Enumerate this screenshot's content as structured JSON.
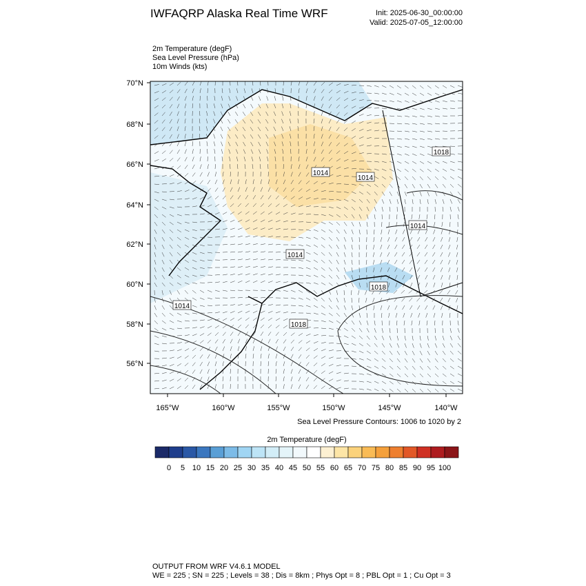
{
  "header": {
    "title": "IWFAQRP Alaska Real Time WRF",
    "init": "Init: 2025-06-30_00:00:00",
    "valid": "Valid: 2025-07-05_12:00:00"
  },
  "fields": [
    "2m Temperature   (degF)",
    "Sea Level Pressure   (hPa)",
    "10m Winds   (kts)"
  ],
  "map": {
    "lat_labels": [
      "70°N",
      "68°N",
      "66°N",
      "64°N",
      "62°N",
      "60°N",
      "58°N",
      "56°N"
    ],
    "lon_labels": [
      "165°W",
      "160°W",
      "155°W",
      "150°W",
      "145°W",
      "140°W"
    ],
    "contour_labels": [
      "1014",
      "1014",
      "1018",
      "1014",
      "1014",
      "1018",
      "1014",
      "1018"
    ],
    "contour_note": "Sea Level Pressure Contours: 1006 to 1020 by 2"
  },
  "colorbar": {
    "title": "2m Temperature  (degF)",
    "ticks": [
      0,
      5,
      10,
      15,
      20,
      25,
      30,
      35,
      40,
      45,
      50,
      55,
      60,
      65,
      70,
      75,
      80,
      85,
      90,
      95,
      100
    ],
    "colors": [
      "#1b2a68",
      "#1f3e8c",
      "#2a58a6",
      "#3b77bf",
      "#5a9fd6",
      "#7cbbe7",
      "#a0d5f3",
      "#bde4f6",
      "#d2edf7",
      "#e4f4f9",
      "#f2f9fc",
      "#ffffff",
      "#fdf0d2",
      "#fde5a6",
      "#fbd27b",
      "#f9bb55",
      "#f4a03b",
      "#ee7f2f",
      "#e25827",
      "#cf3023",
      "#ae1c1f",
      "#8b1518"
    ]
  },
  "footer": [
    "OUTPUT FROM WRF V4.6.1 MODEL",
    "WE = 225 ; SN = 225 ; Levels = 38 ; Dis = 8km ; Phys Opt = 8 ; PBL Opt = 1 ; Cu Opt = 3"
  ]
}
